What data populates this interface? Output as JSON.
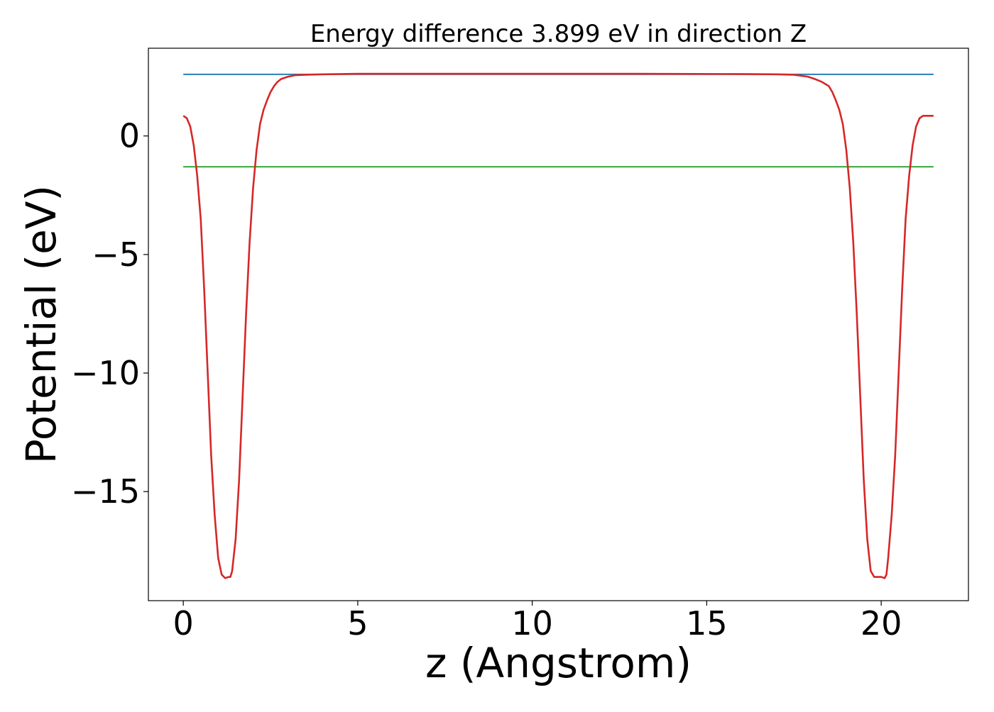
{
  "chart_data": {
    "type": "line",
    "title": "Energy difference 3.899 eV in direction Z",
    "xlabel": "z (Angstrom)",
    "ylabel": "Potential (eV)",
    "xlim": [
      -1.0,
      22.5
    ],
    "ylim": [
      -19.6,
      3.7
    ],
    "x_ticks": [
      0,
      5,
      10,
      15,
      20
    ],
    "x_tick_labels": [
      "0",
      "5",
      "10",
      "15",
      "20"
    ],
    "y_ticks": [
      0,
      -5,
      -10,
      -15
    ],
    "y_tick_labels": [
      "0",
      "−5",
      "−10",
      "−15"
    ],
    "grid": false,
    "legend": "none",
    "series": [
      {
        "color": "#1f77b4",
        "x": [
          0,
          21.5
        ],
        "y": [
          2.6,
          2.6
        ]
      },
      {
        "color": "#2ca02c",
        "x": [
          0,
          21.5
        ],
        "y": [
          -1.3,
          -1.3
        ]
      },
      {
        "color": "#d62728",
        "x": [
          0,
          0.1,
          0.2,
          0.3,
          0.4,
          0.5,
          0.6,
          0.7,
          0.8,
          0.9,
          1.0,
          1.1,
          1.2,
          1.3,
          1.35,
          1.4,
          1.5,
          1.6,
          1.7,
          1.8,
          1.9,
          2.0,
          2.1,
          2.2,
          2.3,
          2.4,
          2.5,
          2.6,
          2.7,
          2.8,
          3.0,
          3.2,
          3.5,
          4.0,
          5.0,
          8.0,
          10.75,
          13.0,
          16.0,
          17.0,
          17.5,
          17.9,
          18.1,
          18.3,
          18.5,
          18.6,
          18.7,
          18.8,
          18.9,
          19.0,
          19.1,
          19.2,
          19.3,
          19.4,
          19.5,
          19.6,
          19.7,
          19.8,
          19.9,
          20.0,
          20.1,
          20.15,
          20.2,
          20.3,
          20.4,
          20.5,
          20.6,
          20.7,
          20.8,
          20.9,
          21.0,
          21.1,
          21.2,
          21.3,
          21.4,
          21.5
        ],
        "y": [
          0.85,
          0.75,
          0.4,
          -0.4,
          -1.7,
          -3.5,
          -6.5,
          -10.0,
          -13.5,
          -16.0,
          -17.8,
          -18.5,
          -18.65,
          -18.6,
          -18.6,
          -18.35,
          -17.0,
          -14.5,
          -11.0,
          -7.5,
          -4.5,
          -2.2,
          -0.6,
          0.5,
          1.1,
          1.5,
          1.85,
          2.1,
          2.28,
          2.4,
          2.5,
          2.56,
          2.58,
          2.6,
          2.62,
          2.62,
          2.62,
          2.62,
          2.61,
          2.6,
          2.58,
          2.5,
          2.4,
          2.28,
          2.1,
          1.85,
          1.5,
          1.1,
          0.5,
          -0.6,
          -2.2,
          -4.5,
          -7.5,
          -11.0,
          -14.5,
          -17.0,
          -18.35,
          -18.6,
          -18.6,
          -18.6,
          -18.65,
          -18.5,
          -17.8,
          -16.0,
          -13.5,
          -10.0,
          -6.5,
          -3.5,
          -1.7,
          -0.4,
          0.4,
          0.75,
          0.85,
          0.85,
          0.85,
          0.85
        ]
      }
    ]
  }
}
